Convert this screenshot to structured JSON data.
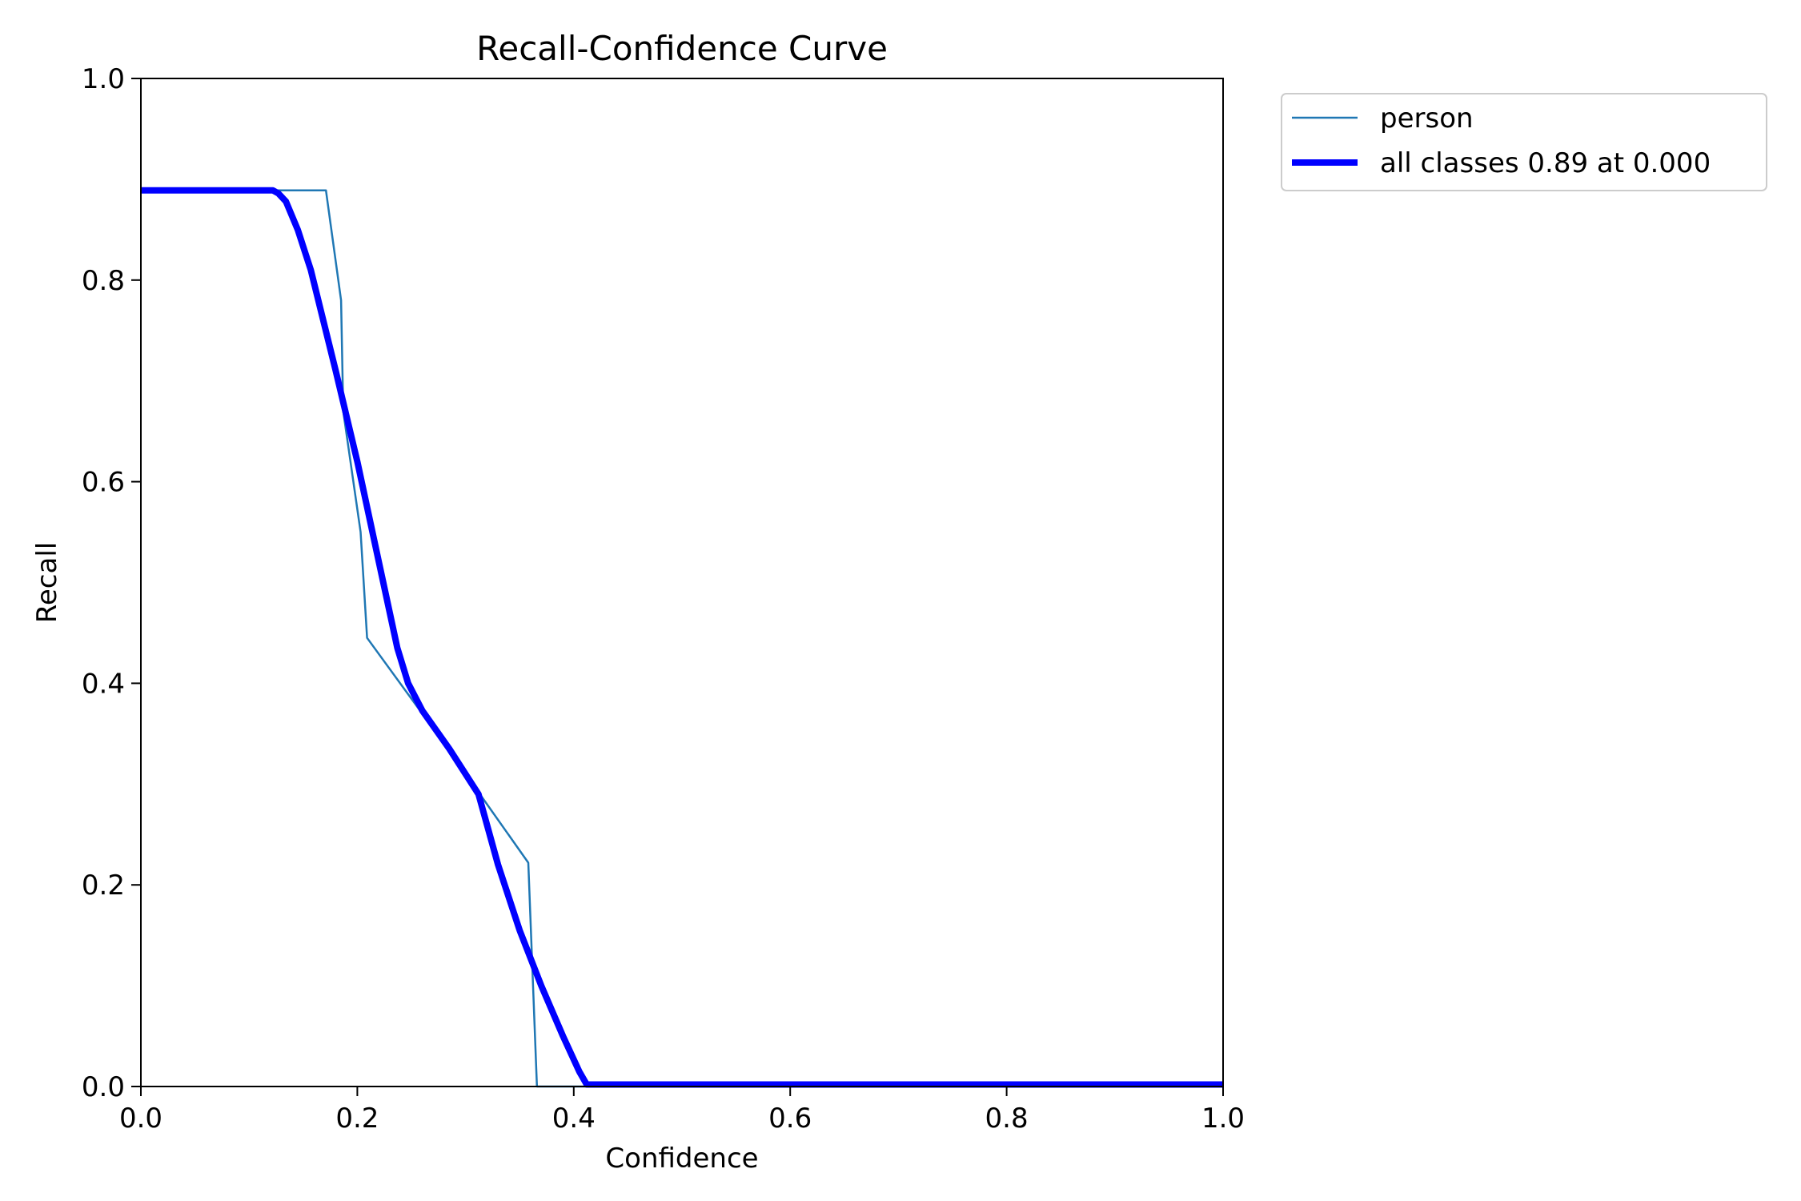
{
  "chart_data": {
    "type": "line",
    "title": "Recall-Confidence Curve",
    "xlabel": "Confidence",
    "ylabel": "Recall",
    "xlim": [
      0,
      1
    ],
    "ylim": [
      0,
      1
    ],
    "xticks": [
      "0.0",
      "0.2",
      "0.4",
      "0.6",
      "0.8",
      "1.0"
    ],
    "yticks": [
      "0.0",
      "0.2",
      "0.4",
      "0.6",
      "0.8",
      "1.0"
    ],
    "grid": false,
    "legend_position": "outside-top-right",
    "series": [
      {
        "name": "person",
        "color": "#1f77b4",
        "points": [
          [
            0.0,
            0.889
          ],
          [
            0.171,
            0.889
          ],
          [
            0.185,
            0.78
          ],
          [
            0.187,
            0.67
          ],
          [
            0.203,
            0.55
          ],
          [
            0.209,
            0.445
          ],
          [
            0.26,
            0.37
          ],
          [
            0.31,
            0.295
          ],
          [
            0.358,
            0.222
          ],
          [
            0.366,
            0.0
          ],
          [
            1.0,
            0.0
          ]
        ]
      },
      {
        "name": "all classes 0.89 at 0.000",
        "color": "#0000ff",
        "points": [
          [
            0.0,
            0.889
          ],
          [
            0.122,
            0.889
          ],
          [
            0.127,
            0.886
          ],
          [
            0.134,
            0.878
          ],
          [
            0.145,
            0.85
          ],
          [
            0.157,
            0.81
          ],
          [
            0.18,
            0.71
          ],
          [
            0.2,
            0.62
          ],
          [
            0.22,
            0.52
          ],
          [
            0.237,
            0.435
          ],
          [
            0.247,
            0.4
          ],
          [
            0.26,
            0.373
          ],
          [
            0.285,
            0.335
          ],
          [
            0.312,
            0.29
          ],
          [
            0.33,
            0.22
          ],
          [
            0.35,
            0.155
          ],
          [
            0.37,
            0.1
          ],
          [
            0.39,
            0.05
          ],
          [
            0.405,
            0.015
          ],
          [
            0.412,
            0.002
          ],
          [
            0.43,
            0.002
          ],
          [
            1.0,
            0.002
          ]
        ]
      }
    ]
  }
}
